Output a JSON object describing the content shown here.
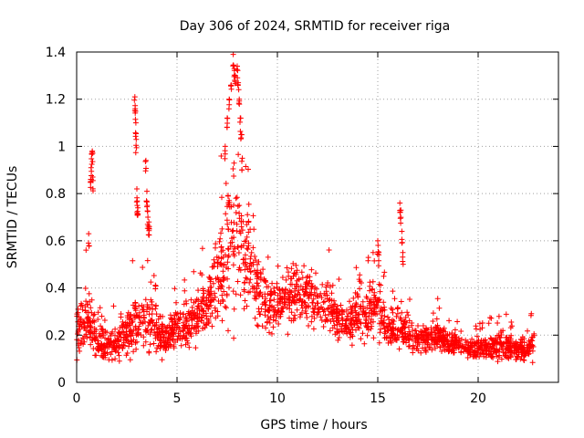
{
  "chart_data": {
    "type": "scatter",
    "title": "Day 306 of 2024, SRMTID for receiver riga",
    "xlabel": "GPS time / hours",
    "ylabel": "SRMTID / TECUs",
    "xlim": [
      0,
      24
    ],
    "ylim": [
      0,
      1.4
    ],
    "xticks": [
      0,
      5,
      10,
      15,
      20
    ],
    "yticks": [
      0,
      0.2,
      0.4,
      0.6,
      0.8,
      1,
      1.2,
      1.4
    ],
    "xtick_labels": [
      "0",
      "5",
      "10",
      "15",
      "20"
    ],
    "ytick_labels": [
      "0",
      "0.2",
      "0.4",
      "0.6",
      "0.8",
      "1",
      "1.2",
      "1.4"
    ],
    "grid": true,
    "marker": "+",
    "color": "#ff0000",
    "envelope": {
      "hours": [
        0.0,
        0.5,
        1.0,
        1.5,
        2.0,
        2.5,
        3.0,
        3.5,
        4.0,
        4.5,
        5.0,
        5.5,
        6.0,
        6.5,
        7.0,
        7.5,
        8.0,
        8.5,
        9.0,
        9.5,
        10.0,
        10.5,
        11.0,
        11.5,
        12.0,
        12.5,
        13.0,
        13.5,
        14.0,
        14.5,
        15.0,
        15.5,
        16.0,
        16.5,
        17.0,
        17.5,
        18.0,
        18.5,
        19.0,
        19.5,
        20.0,
        20.5,
        21.0,
        21.5,
        22.0,
        22.5,
        22.8
      ],
      "center": [
        0.22,
        0.26,
        0.17,
        0.15,
        0.17,
        0.2,
        0.24,
        0.28,
        0.22,
        0.2,
        0.23,
        0.24,
        0.27,
        0.33,
        0.42,
        0.55,
        0.62,
        0.55,
        0.4,
        0.32,
        0.34,
        0.36,
        0.38,
        0.36,
        0.34,
        0.32,
        0.26,
        0.24,
        0.28,
        0.3,
        0.32,
        0.22,
        0.24,
        0.2,
        0.18,
        0.18,
        0.2,
        0.17,
        0.16,
        0.14,
        0.14,
        0.15,
        0.16,
        0.15,
        0.14,
        0.13,
        0.18
      ],
      "spread": [
        0.1,
        0.14,
        0.08,
        0.07,
        0.08,
        0.1,
        0.15,
        0.14,
        0.1,
        0.08,
        0.08,
        0.09,
        0.1,
        0.12,
        0.18,
        0.3,
        0.32,
        0.22,
        0.16,
        0.12,
        0.12,
        0.13,
        0.12,
        0.12,
        0.12,
        0.11,
        0.08,
        0.08,
        0.1,
        0.11,
        0.12,
        0.08,
        0.1,
        0.07,
        0.06,
        0.06,
        0.07,
        0.06,
        0.05,
        0.05,
        0.05,
        0.05,
        0.06,
        0.06,
        0.05,
        0.05,
        0.08
      ],
      "samples_per_hour": 95
    },
    "spikes": [
      {
        "hours": [
          0.6,
          0.7,
          0.72,
          0.75,
          0.78,
          0.8
        ],
        "values": [
          0.63,
          0.86,
          0.91,
          0.97,
          0.98,
          0.87
        ]
      },
      {
        "hours": [
          2.9,
          2.92,
          2.95,
          2.97,
          3.0,
          3.02,
          3.05
        ],
        "values": [
          1.21,
          1.16,
          1.1,
          1.03,
          0.82,
          0.75,
          0.74
        ]
      },
      {
        "hours": [
          3.45,
          3.5,
          3.52,
          3.55,
          3.6,
          3.62
        ],
        "values": [
          0.94,
          0.81,
          0.75,
          0.7,
          0.68,
          0.66
        ]
      },
      {
        "hours": [
          7.4,
          7.5,
          7.6,
          7.7,
          7.8,
          7.85,
          7.9,
          8.0,
          8.05,
          8.1,
          8.15,
          8.2,
          8.25
        ],
        "values": [
          1.0,
          1.12,
          1.2,
          1.26,
          1.39,
          1.33,
          1.3,
          1.34,
          1.27,
          1.2,
          1.12,
          1.05,
          0.95
        ]
      },
      {
        "hours": [
          16.1,
          16.15,
          16.2,
          16.25
        ],
        "values": [
          0.76,
          0.73,
          0.64,
          0.55
        ]
      },
      {
        "hours": [
          15.0,
          15.05
        ],
        "values": [
          0.6,
          0.55
        ]
      }
    ]
  }
}
